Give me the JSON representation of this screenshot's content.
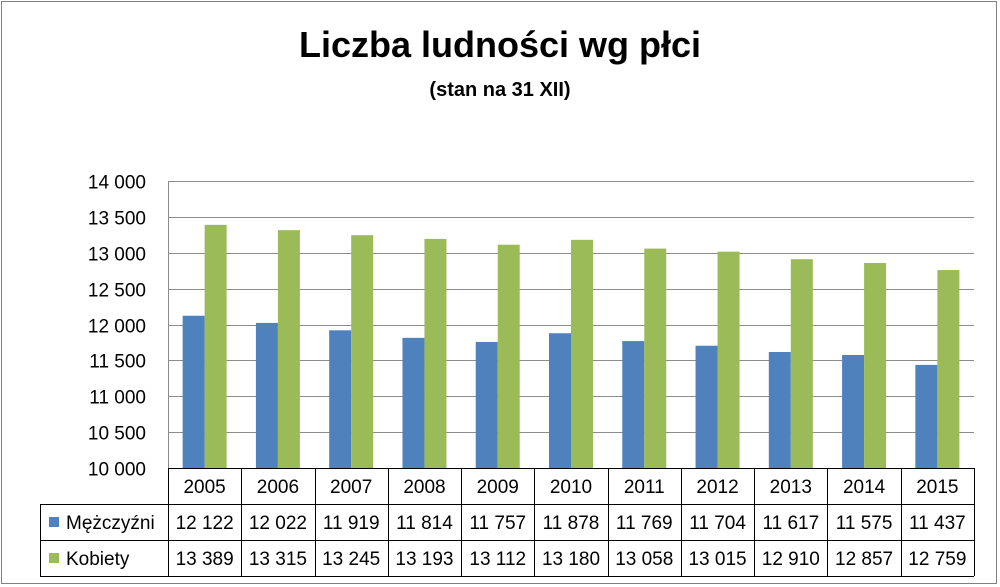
{
  "chart_data": {
    "type": "bar",
    "title": "Liczba ludności wg płci",
    "subtitle": "(stan na 31 XII)",
    "categories": [
      "2005",
      "2006",
      "2007",
      "2008",
      "2009",
      "2010",
      "2011",
      "2012",
      "2013",
      "2014",
      "2015"
    ],
    "series": [
      {
        "name": "Mężczyźni",
        "color": "#4f81bd",
        "values": [
          12122,
          12022,
          11919,
          11814,
          11757,
          11878,
          11769,
          11704,
          11617,
          11575,
          11437
        ],
        "labels": [
          "12 122",
          "12 022",
          "11 919",
          "11 814",
          "11 757",
          "11 878",
          "11 769",
          "11 704",
          "11 617",
          "11 575",
          "11 437"
        ]
      },
      {
        "name": "Kobiety",
        "color": "#9bbb59",
        "values": [
          13389,
          13315,
          13245,
          13193,
          13112,
          13180,
          13058,
          13015,
          12910,
          12857,
          12759
        ],
        "labels": [
          "13 389",
          "13 315",
          "13 245",
          "13 193",
          "13 112",
          "13 180",
          "13 058",
          "13 015",
          "12 910",
          "12 857",
          "12 759"
        ]
      }
    ],
    "ylim": [
      10000,
      14000
    ],
    "yticks": [
      10000,
      10500,
      11000,
      11500,
      12000,
      12500,
      13000,
      13500,
      14000
    ],
    "ytick_labels": [
      "10 000",
      "10 500",
      "11 000",
      "11 500",
      "12 000",
      "12 500",
      "13 000",
      "13 500",
      "14 000"
    ],
    "grid": true,
    "legend": "data-table"
  }
}
